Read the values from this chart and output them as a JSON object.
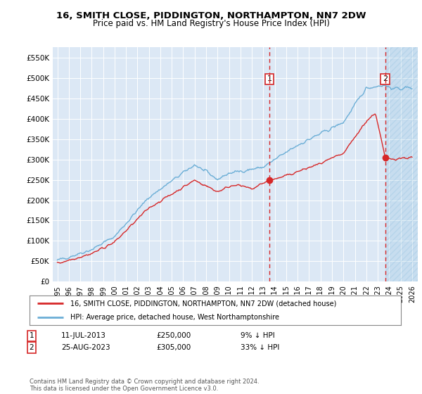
{
  "title": "16, SMITH CLOSE, PIDDINGTON, NORTHAMPTON, NN7 2DW",
  "subtitle": "Price paid vs. HM Land Registry's House Price Index (HPI)",
  "ylim": [
    0,
    575000
  ],
  "yticks": [
    0,
    50000,
    100000,
    150000,
    200000,
    250000,
    300000,
    350000,
    400000,
    450000,
    500000,
    550000
  ],
  "ytick_labels": [
    "£0",
    "£50K",
    "£100K",
    "£150K",
    "£200K",
    "£250K",
    "£300K",
    "£350K",
    "£400K",
    "£450K",
    "£500K",
    "£550K"
  ],
  "legend_line1": "16, SMITH CLOSE, PIDDINGTON, NORTHAMPTON, NN7 2DW (detached house)",
  "legend_line2": "HPI: Average price, detached house, West Northamptonshire",
  "note1_label": "1",
  "note1_date": "11-JUL-2013",
  "note1_price": "£250,000",
  "note1_hpi": "9% ↓ HPI",
  "note2_label": "2",
  "note2_date": "25-AUG-2023",
  "note2_price": "£305,000",
  "note2_hpi": "33% ↓ HPI",
  "footnote": "Contains HM Land Registry data © Crown copyright and database right 2024.\nThis data is licensed under the Open Government Licence v3.0.",
  "hpi_color": "#6baed6",
  "price_color": "#d62728",
  "bg_color": "#dce8f5",
  "sale1_price": 250000,
  "sale2_price": 305000,
  "sale1_year": 2013.53,
  "sale2_year": 2023.65
}
